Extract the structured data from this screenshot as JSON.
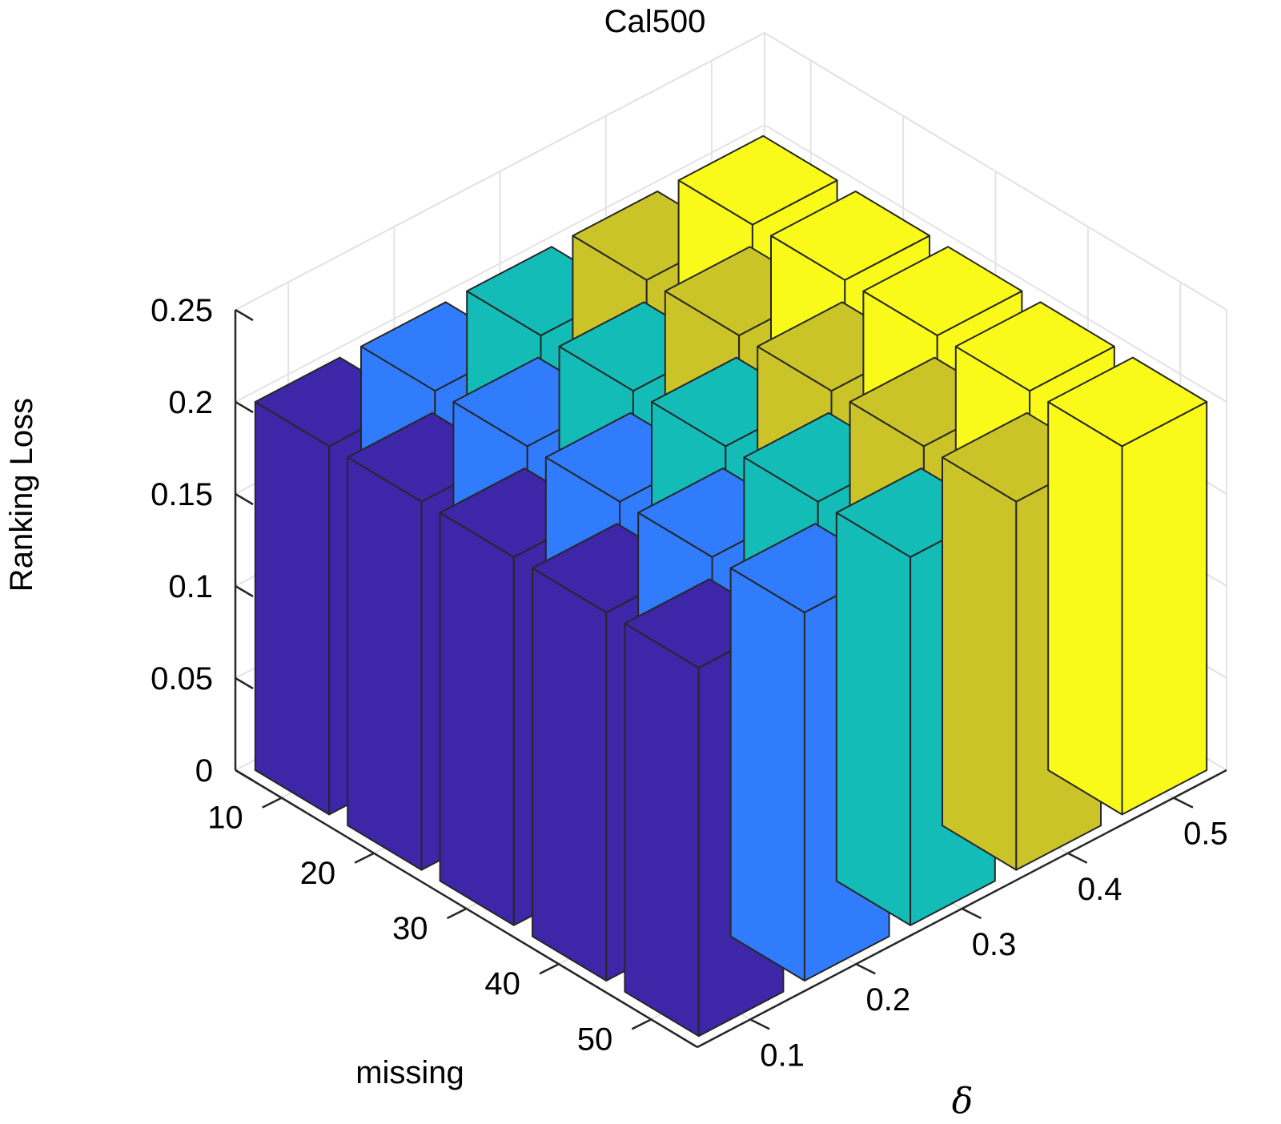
{
  "chart_data": {
    "type": "bar3d",
    "title": "Cal500",
    "zlabel": "Ranking Loss",
    "xlabel": "missing",
    "ylabel": "δ",
    "zlim": [
      0,
      0.25
    ],
    "z_ticks": [
      "0",
      "0.05",
      "0.1",
      "0.15",
      "0.2",
      "0.25"
    ],
    "missing_categories": [
      "10",
      "20",
      "30",
      "40",
      "50"
    ],
    "delta_categories": [
      "0.1",
      "0.2",
      "0.3",
      "0.4",
      "0.5"
    ],
    "series": [
      {
        "name": "0.1",
        "color": "#3d26a8",
        "values": [
          0.2,
          0.2,
          0.2,
          0.2,
          0.2
        ]
      },
      {
        "name": "0.2",
        "color": "#317cfc",
        "values": [
          0.2,
          0.2,
          0.2,
          0.2,
          0.2
        ]
      },
      {
        "name": "0.3",
        "color": "#14bcb8",
        "values": [
          0.2,
          0.2,
          0.2,
          0.2,
          0.2
        ]
      },
      {
        "name": "0.4",
        "color": "#cbc428",
        "values": [
          0.2,
          0.2,
          0.2,
          0.2,
          0.2
        ]
      },
      {
        "name": "0.5",
        "color": "#fafa1a",
        "values": [
          0.2,
          0.2,
          0.2,
          0.2,
          0.2
        ]
      }
    ],
    "grid": true
  }
}
